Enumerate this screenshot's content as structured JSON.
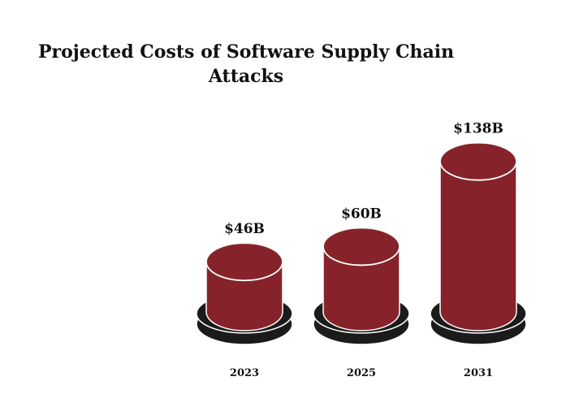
{
  "chart_data": {
    "type": "bar",
    "title": "Projected Costs of Software Supply Chain Attacks",
    "title_lines": [
      "Projected Costs of Software Supply Chain",
      "Attacks"
    ],
    "categories": [
      "2023",
      "2025",
      "2031"
    ],
    "values": [
      46,
      60,
      138
    ],
    "value_labels": [
      "$46B",
      "$60B",
      "$138B"
    ],
    "unit": "$B",
    "xlabel": "",
    "ylabel": "",
    "ylim": [
      0,
      150
    ],
    "grid": false,
    "legend": "none",
    "colors": {
      "cylinder": "#86232a",
      "base": "#1b1b1b",
      "outline": "#ffffff",
      "text": "#111111"
    }
  }
}
